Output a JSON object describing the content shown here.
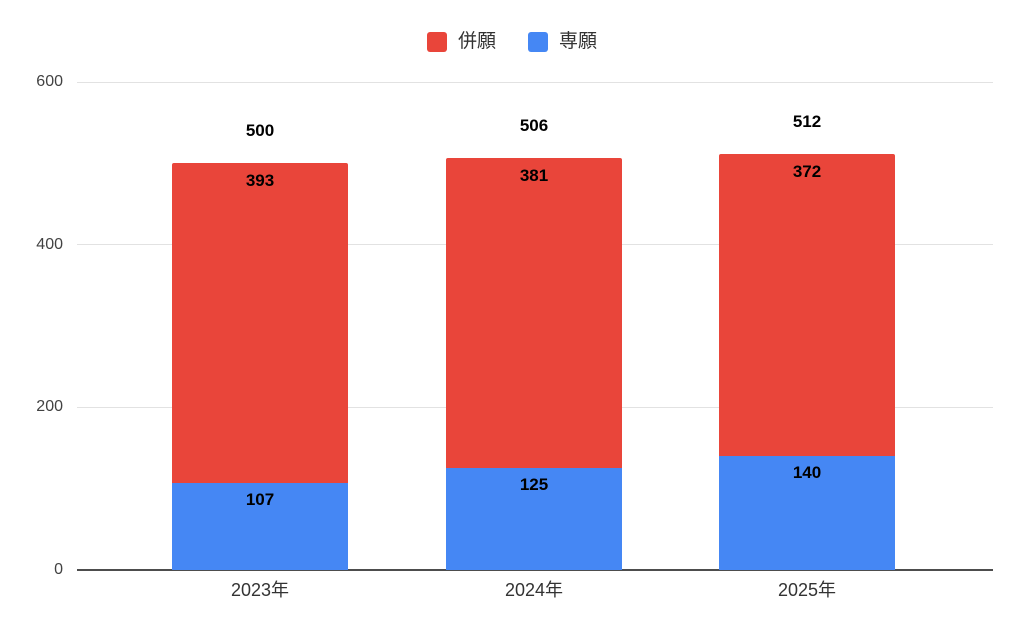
{
  "chart_data": {
    "type": "bar",
    "stacked": true,
    "title": "",
    "categories": [
      "2023年",
      "2024年",
      "2025年"
    ],
    "series": [
      {
        "name": "併願",
        "color": "#E9453A",
        "values": [
          393,
          381,
          372
        ]
      },
      {
        "name": "専願",
        "color": "#4587F4",
        "values": [
          107,
          125,
          140
        ]
      }
    ],
    "totals": [
      500,
      506,
      512
    ],
    "segment_labels": {
      "併願": [
        "393",
        "381",
        "372"
      ],
      "専願": [
        "107",
        "125",
        "140"
      ]
    },
    "total_labels": [
      "500",
      "506",
      "512"
    ],
    "ylim": [
      0,
      600
    ],
    "yticks": [
      0,
      200,
      400,
      600
    ],
    "ytick_labels": [
      "0",
      "200",
      "400",
      "600"
    ],
    "grid": true,
    "legend_position": "top"
  },
  "legend": {
    "items": [
      {
        "label": "併願",
        "color": "#E9453A"
      },
      {
        "label": "専願",
        "color": "#4587F4"
      }
    ]
  },
  "colors": {
    "background": "#ffffff",
    "gridline": "#e2e2e2",
    "axis_line": "#4d4d4d",
    "tick_text": "#424242",
    "label_text": "#000000"
  }
}
